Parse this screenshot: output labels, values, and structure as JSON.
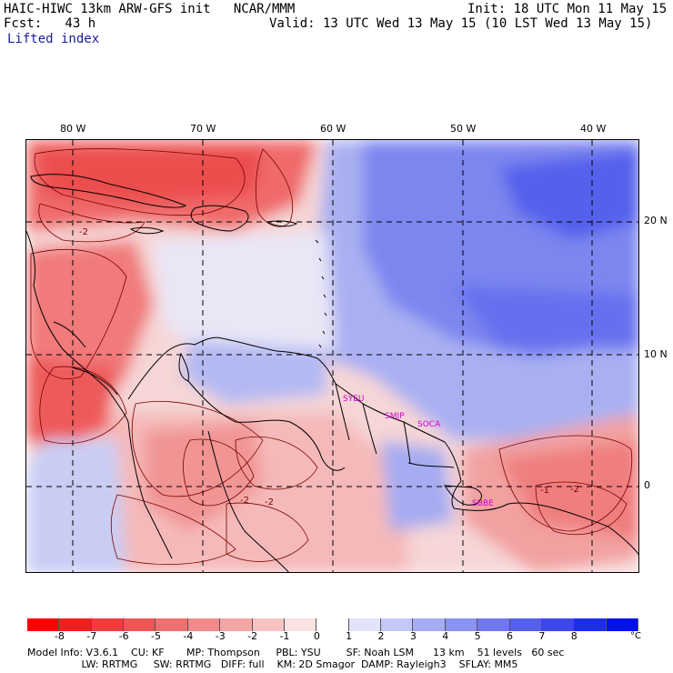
{
  "header": {
    "title_left": "HAIC-HIWC 13km ARW-GFS init   NCAR/MMM",
    "fcst": "Fcst:   43 h",
    "field_name": "Lifted index",
    "init": "Init: 18 UTC Mon 11 May 15",
    "valid": "Valid: 13 UTC Wed 13 May 15 (10 LST Wed 13 May 15)"
  },
  "map": {
    "lon_labels": [
      "80 W",
      "70 W",
      "60 W",
      "50 W",
      "40 W"
    ],
    "lat_labels": [
      "20 N",
      "10 N",
      "0"
    ],
    "contour_labels": [
      "-2",
      "-2",
      "-2",
      "-2",
      "-1"
    ],
    "site_labels": [
      "SYEU",
      "SMJP",
      "SOCA",
      "SBBE"
    ],
    "colors": {
      "strong_red": "#f23a3a",
      "mid_red": "#f47d7d",
      "light_red": "#f7c2c2",
      "neutral": "#f4f4fa",
      "light_blue": "#c2c8f4",
      "mid_blue": "#7d86f0",
      "strong_blue": "#3a47ea"
    }
  },
  "colorbar": {
    "ticks": [
      "-8",
      "-7",
      "-6",
      "-5",
      "-4",
      "-3",
      "-2",
      "-1",
      "0",
      "1",
      "2",
      "3",
      "4",
      "5",
      "6",
      "7",
      "8"
    ],
    "unit": "°C",
    "colors": [
      "#ff0000",
      "#f51e1e",
      "#f23c3c",
      "#ee5555",
      "#f07070",
      "#f18b8b",
      "#f4a6a6",
      "#f6c3c3",
      "#f9e2e2",
      "#ffffff",
      "#e2e5fa",
      "#c3c8f6",
      "#a6acf3",
      "#8b92f1",
      "#7077ef",
      "#5560ed",
      "#3c48ec",
      "#1e2ceb",
      "#0011ee"
    ]
  },
  "model_info": {
    "line1": "Model Info: V3.6.1    CU: KF       MP: Thompson     PBL: YSU        SF: Noah LSM      13 km    51 levels   60 sec",
    "line2": "                 LW: RRTMG     SW: RRTMG   DIFF: full    KM: 2D Smagor  DAMP: Rayleigh3    SFLAY: MM5"
  }
}
